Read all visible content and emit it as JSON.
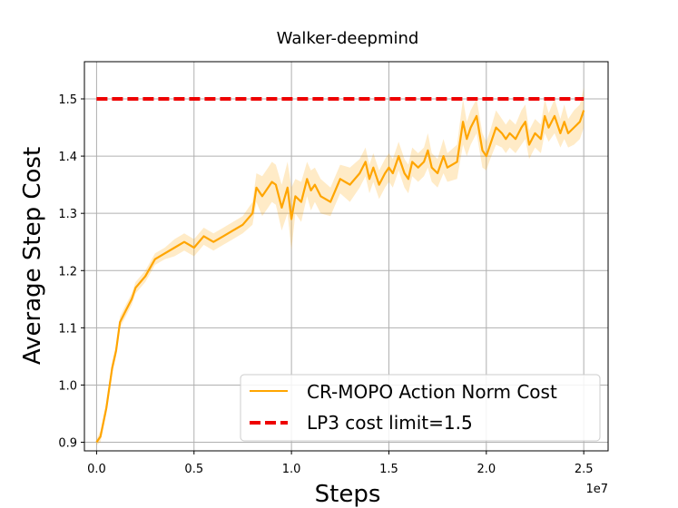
{
  "chart_data": {
    "type": "line",
    "title": "Walker-deepmind",
    "xlabel": "Steps",
    "ylabel": "Average Step Cost",
    "x_offset_label": "1e7",
    "xlim": [
      -0.0625,
      2.625
    ],
    "ylim": [
      0.885,
      1.565
    ],
    "xticks": [
      0.0,
      0.5,
      1.0,
      1.5,
      2.0,
      2.5
    ],
    "xtick_labels": [
      "0.0",
      "0.5",
      "1.0",
      "1.5",
      "2.0",
      "2.5"
    ],
    "yticks": [
      0.9,
      1.0,
      1.1,
      1.2,
      1.3,
      1.4,
      1.5
    ],
    "ytick_labels": [
      "0.9",
      "1.0",
      "1.1",
      "1.2",
      "1.3",
      "1.4",
      "1.5"
    ],
    "grid": true,
    "legend_position": "bottom-right",
    "series": [
      {
        "name": "CR-MOPO Action Norm Cost",
        "color": "#FFA500",
        "band_color": "#FFA500",
        "style": "solid",
        "x": [
          0.0,
          0.02,
          0.05,
          0.08,
          0.1,
          0.12,
          0.15,
          0.18,
          0.2,
          0.25,
          0.3,
          0.35,
          0.4,
          0.45,
          0.5,
          0.55,
          0.6,
          0.65,
          0.7,
          0.75,
          0.8,
          0.82,
          0.85,
          0.88,
          0.9,
          0.92,
          0.95,
          0.98,
          1.0,
          1.02,
          1.05,
          1.08,
          1.1,
          1.12,
          1.15,
          1.2,
          1.25,
          1.3,
          1.35,
          1.38,
          1.4,
          1.42,
          1.45,
          1.48,
          1.5,
          1.52,
          1.55,
          1.58,
          1.6,
          1.62,
          1.65,
          1.68,
          1.7,
          1.72,
          1.75,
          1.78,
          1.8,
          1.85,
          1.88,
          1.9,
          1.92,
          1.95,
          1.98,
          2.0,
          2.02,
          2.05,
          2.08,
          2.1,
          2.12,
          2.15,
          2.18,
          2.2,
          2.22,
          2.25,
          2.28,
          2.3,
          2.32,
          2.35,
          2.38,
          2.4,
          2.42,
          2.45,
          2.48,
          2.5
        ],
        "y": [
          0.9,
          0.91,
          0.96,
          1.03,
          1.06,
          1.11,
          1.13,
          1.15,
          1.17,
          1.19,
          1.22,
          1.23,
          1.24,
          1.25,
          1.24,
          1.26,
          1.25,
          1.26,
          1.27,
          1.28,
          1.3,
          1.345,
          1.33,
          1.345,
          1.355,
          1.35,
          1.31,
          1.345,
          1.29,
          1.33,
          1.32,
          1.36,
          1.34,
          1.35,
          1.33,
          1.32,
          1.36,
          1.35,
          1.37,
          1.39,
          1.36,
          1.38,
          1.35,
          1.37,
          1.38,
          1.37,
          1.4,
          1.37,
          1.36,
          1.39,
          1.38,
          1.39,
          1.41,
          1.38,
          1.37,
          1.4,
          1.38,
          1.39,
          1.46,
          1.43,
          1.45,
          1.47,
          1.41,
          1.4,
          1.42,
          1.45,
          1.44,
          1.43,
          1.44,
          1.43,
          1.45,
          1.46,
          1.42,
          1.44,
          1.43,
          1.47,
          1.45,
          1.47,
          1.44,
          1.46,
          1.44,
          1.45,
          1.46,
          1.48
        ],
        "lower": [
          0.895,
          0.9,
          0.95,
          1.02,
          1.05,
          1.1,
          1.12,
          1.14,
          1.16,
          1.18,
          1.21,
          1.22,
          1.225,
          1.235,
          1.225,
          1.245,
          1.235,
          1.245,
          1.255,
          1.265,
          1.28,
          1.32,
          1.295,
          1.31,
          1.32,
          1.315,
          1.27,
          1.3,
          1.235,
          1.3,
          1.285,
          1.33,
          1.305,
          1.32,
          1.3,
          1.295,
          1.335,
          1.32,
          1.345,
          1.365,
          1.335,
          1.355,
          1.325,
          1.345,
          1.355,
          1.345,
          1.375,
          1.345,
          1.335,
          1.365,
          1.355,
          1.365,
          1.38,
          1.355,
          1.345,
          1.37,
          1.355,
          1.36,
          1.42,
          1.4,
          1.42,
          1.44,
          1.38,
          1.375,
          1.395,
          1.42,
          1.415,
          1.405,
          1.415,
          1.405,
          1.42,
          1.43,
          1.395,
          1.415,
          1.405,
          1.44,
          1.425,
          1.44,
          1.415,
          1.43,
          1.415,
          1.42,
          1.43,
          1.45
        ],
        "upper": [
          0.905,
          0.92,
          0.97,
          1.04,
          1.07,
          1.12,
          1.14,
          1.16,
          1.18,
          1.2,
          1.23,
          1.24,
          1.255,
          1.265,
          1.255,
          1.275,
          1.265,
          1.275,
          1.285,
          1.295,
          1.32,
          1.37,
          1.365,
          1.38,
          1.39,
          1.385,
          1.35,
          1.39,
          1.345,
          1.36,
          1.355,
          1.39,
          1.375,
          1.38,
          1.36,
          1.345,
          1.385,
          1.38,
          1.395,
          1.415,
          1.385,
          1.405,
          1.375,
          1.395,
          1.405,
          1.395,
          1.425,
          1.395,
          1.385,
          1.415,
          1.405,
          1.415,
          1.44,
          1.405,
          1.395,
          1.43,
          1.405,
          1.42,
          1.5,
          1.46,
          1.48,
          1.5,
          1.44,
          1.425,
          1.445,
          1.48,
          1.465,
          1.455,
          1.465,
          1.455,
          1.48,
          1.49,
          1.445,
          1.465,
          1.455,
          1.5,
          1.475,
          1.5,
          1.465,
          1.49,
          1.465,
          1.48,
          1.49,
          1.52
        ]
      },
      {
        "name": "LP3 cost limit=1.5",
        "color": "#EE0000",
        "style": "dashed",
        "x": [
          0.0,
          2.5
        ],
        "y": [
          1.5,
          1.5
        ]
      }
    ]
  }
}
